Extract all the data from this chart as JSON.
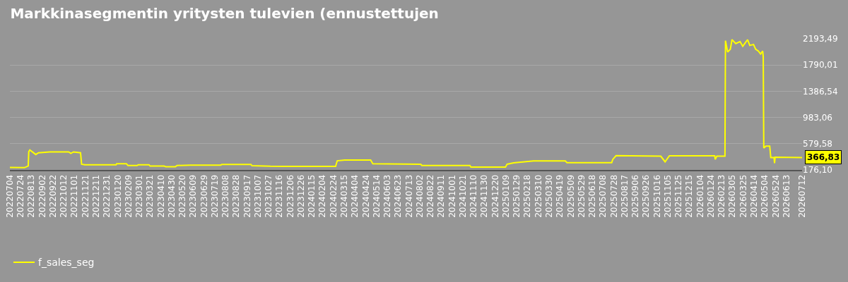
{
  "chart_data": {
    "type": "line",
    "title": "Markkinasegmentin yritysten tulevien (ennustettujen",
    "x": [
      "2022-07-04",
      "2022-07-31",
      "2022-08-07",
      "2022-08-08",
      "2022-08-10",
      "2022-08-21",
      "2022-08-26",
      "2022-09-16",
      "2022-10-21",
      "2022-10-25",
      "2022-10-30",
      "2022-11-12",
      "2022-11-14",
      "2022-11-20",
      "2023-01-17",
      "2023-01-18",
      "2023-02-05",
      "2023-02-08",
      "2023-02-25",
      "2023-02-27",
      "2023-03-19",
      "2023-03-21",
      "2023-04-16",
      "2023-04-19",
      "2023-05-07",
      "2023-05-10",
      "2023-06-04",
      "2023-07-30",
      "2023-08-01",
      "2023-09-24",
      "2023-09-26",
      "2023-10-30",
      "2023-11-29",
      "2024-02-28",
      "2024-03-02",
      "2024-03-16",
      "2024-05-03",
      "2024-05-07",
      "2024-08-04",
      "2024-08-06",
      "2024-11-03",
      "2024-11-05",
      "2025-01-08",
      "2025-01-11",
      "2025-01-23",
      "2025-03-01",
      "2025-04-29",
      "2025-05-02",
      "2025-07-24",
      "2025-07-26",
      "2025-08-01",
      "2025-10-23",
      "2025-10-31",
      "2025-11-08",
      "2026-01-31",
      "2026-02-01",
      "2026-02-04",
      "2026-02-19",
      "2026-02-20",
      "2026-02-24",
      "2026-03-01",
      "2026-03-04",
      "2026-03-11",
      "2026-03-19",
      "2026-03-24",
      "2026-03-29",
      "2026-04-02",
      "2026-04-06",
      "2026-04-13",
      "2026-04-17",
      "2026-04-22",
      "2026-04-26",
      "2026-04-30",
      "2026-05-01",
      "2026-05-02",
      "2026-05-06",
      "2026-05-13",
      "2026-05-15",
      "2026-05-21",
      "2026-05-22",
      "2026-05-23",
      "2026-07-12"
    ],
    "series": [
      {
        "name": "f_sales_seg",
        "color": "#ffff00",
        "values": [
          214,
          210,
          237,
          457,
          483,
          413,
          440,
          453,
          453,
          430,
          453,
          440,
          264,
          255,
          255,
          270,
          270,
          244,
          244,
          255,
          255,
          235,
          235,
          226,
          226,
          244,
          250,
          250,
          261,
          261,
          240,
          232,
          231,
          229,
          316,
          328,
          328,
          272,
          263,
          244,
          244,
          220,
          220,
          263,
          284,
          314,
          314,
          288,
          288,
          337,
          395,
          387,
          301,
          393,
          393,
          337,
          387,
          387,
          2164,
          1989,
          2033,
          2180,
          2120,
          2150,
          2077,
          2135,
          2180,
          2092,
          2106,
          2033,
          2004,
          1960,
          2004,
          1916,
          512,
          542,
          542,
          366,
          366,
          279,
          370,
          366.83
        ]
      }
    ],
    "xlim": [
      "2022-07-04",
      "2026-07-12"
    ],
    "xticks": [
      {
        "value": "2022-07-04",
        "label": "20220704"
      },
      {
        "value": "2022-07-24",
        "label": "20220724"
      },
      {
        "value": "2022-08-13",
        "label": "20220813"
      },
      {
        "value": "2022-09-02",
        "label": "20220902"
      },
      {
        "value": "2022-09-22",
        "label": "20220922"
      },
      {
        "value": "2022-10-12",
        "label": "20221012"
      },
      {
        "value": "2022-11-01",
        "label": "20221101"
      },
      {
        "value": "2022-11-21",
        "label": "20221121"
      },
      {
        "value": "2022-12-11",
        "label": "20221211"
      },
      {
        "value": "2022-12-31",
        "label": "20221231"
      },
      {
        "value": "2023-01-20",
        "label": "20230120"
      },
      {
        "value": "2023-02-09",
        "label": "20230209"
      },
      {
        "value": "2023-03-01",
        "label": "20230301"
      },
      {
        "value": "2023-03-21",
        "label": "20230321"
      },
      {
        "value": "2023-04-10",
        "label": "20230410"
      },
      {
        "value": "2023-04-30",
        "label": "20230430"
      },
      {
        "value": "2023-05-20",
        "label": "20230520"
      },
      {
        "value": "2023-06-09",
        "label": "20230609"
      },
      {
        "value": "2023-06-29",
        "label": "20230629"
      },
      {
        "value": "2023-07-19",
        "label": "20230719"
      },
      {
        "value": "2023-08-08",
        "label": "20230808"
      },
      {
        "value": "2023-08-28",
        "label": "20230828"
      },
      {
        "value": "2023-09-17",
        "label": "20230917"
      },
      {
        "value": "2023-10-07",
        "label": "20231007"
      },
      {
        "value": "2023-10-27",
        "label": "20231027"
      },
      {
        "value": "2023-11-16",
        "label": "20231116"
      },
      {
        "value": "2023-12-06",
        "label": "20231206"
      },
      {
        "value": "2023-12-26",
        "label": "20231226"
      },
      {
        "value": "2024-01-15",
        "label": "20240115"
      },
      {
        "value": "2024-02-04",
        "label": "20240204"
      },
      {
        "value": "2024-02-24",
        "label": "20240224"
      },
      {
        "value": "2024-03-15",
        "label": "20240315"
      },
      {
        "value": "2024-04-04",
        "label": "20240404"
      },
      {
        "value": "2024-04-24",
        "label": "20240424"
      },
      {
        "value": "2024-05-14",
        "label": "20240514"
      },
      {
        "value": "2024-06-03",
        "label": "20240603"
      },
      {
        "value": "2024-06-23",
        "label": "20240623"
      },
      {
        "value": "2024-07-13",
        "label": "20240713"
      },
      {
        "value": "2024-08-02",
        "label": "20240802"
      },
      {
        "value": "2024-08-22",
        "label": "20240822"
      },
      {
        "value": "2024-09-11",
        "label": "20240911"
      },
      {
        "value": "2024-10-01",
        "label": "20241001"
      },
      {
        "value": "2024-10-21",
        "label": "20241021"
      },
      {
        "value": "2024-11-10",
        "label": "20241110"
      },
      {
        "value": "2024-11-30",
        "label": "20241130"
      },
      {
        "value": "2024-12-20",
        "label": "20241220"
      },
      {
        "value": "2025-01-09",
        "label": "20250109"
      },
      {
        "value": "2025-01-29",
        "label": "20250129"
      },
      {
        "value": "2025-02-18",
        "label": "20250218"
      },
      {
        "value": "2025-03-10",
        "label": "20250310"
      },
      {
        "value": "2025-03-30",
        "label": "20250330"
      },
      {
        "value": "2025-04-19",
        "label": "20250419"
      },
      {
        "value": "2025-05-09",
        "label": "20250509"
      },
      {
        "value": "2025-05-29",
        "label": "20250529"
      },
      {
        "value": "2025-06-18",
        "label": "20250618"
      },
      {
        "value": "2025-07-08",
        "label": "20250708"
      },
      {
        "value": "2025-07-28",
        "label": "20250728"
      },
      {
        "value": "2025-08-17",
        "label": "20250817"
      },
      {
        "value": "2025-09-06",
        "label": "20250906"
      },
      {
        "value": "2025-09-26",
        "label": "20250926"
      },
      {
        "value": "2025-10-16",
        "label": "20251016"
      },
      {
        "value": "2025-11-05",
        "label": "20251105"
      },
      {
        "value": "2025-11-25",
        "label": "20251125"
      },
      {
        "value": "2025-12-15",
        "label": "20251215"
      },
      {
        "value": "2026-01-04",
        "label": "20260104"
      },
      {
        "value": "2026-01-24",
        "label": "20260124"
      },
      {
        "value": "2026-02-13",
        "label": "20260213"
      },
      {
        "value": "2026-03-05",
        "label": "20260305"
      },
      {
        "value": "2026-03-25",
        "label": "20260325"
      },
      {
        "value": "2026-04-14",
        "label": "20260414"
      },
      {
        "value": "2026-05-04",
        "label": "20260504"
      },
      {
        "value": "2026-05-24",
        "label": "20260524"
      },
      {
        "value": "2026-06-13",
        "label": "20260613"
      },
      {
        "value": "2026-07-12",
        "label": "20260712"
      }
    ],
    "ylim": [
      176.1,
      2193.49
    ],
    "yticks": [
      {
        "value": 176.1,
        "label": "176,10"
      },
      {
        "value": 579.58,
        "label": "579,58"
      },
      {
        "value": 983.06,
        "label": "983,06"
      },
      {
        "value": 1386.54,
        "label": "1386,54"
      },
      {
        "value": 1790.01,
        "label": "1790,01"
      },
      {
        "value": 2193.49,
        "label": "2193,49"
      }
    ],
    "annotations": [
      {
        "text": "366,83",
        "x": "2026-07-12",
        "y": 366.83
      }
    ],
    "grid": "y",
    "legend": "bottom left",
    "line_style": "solid",
    "marker": "none"
  }
}
